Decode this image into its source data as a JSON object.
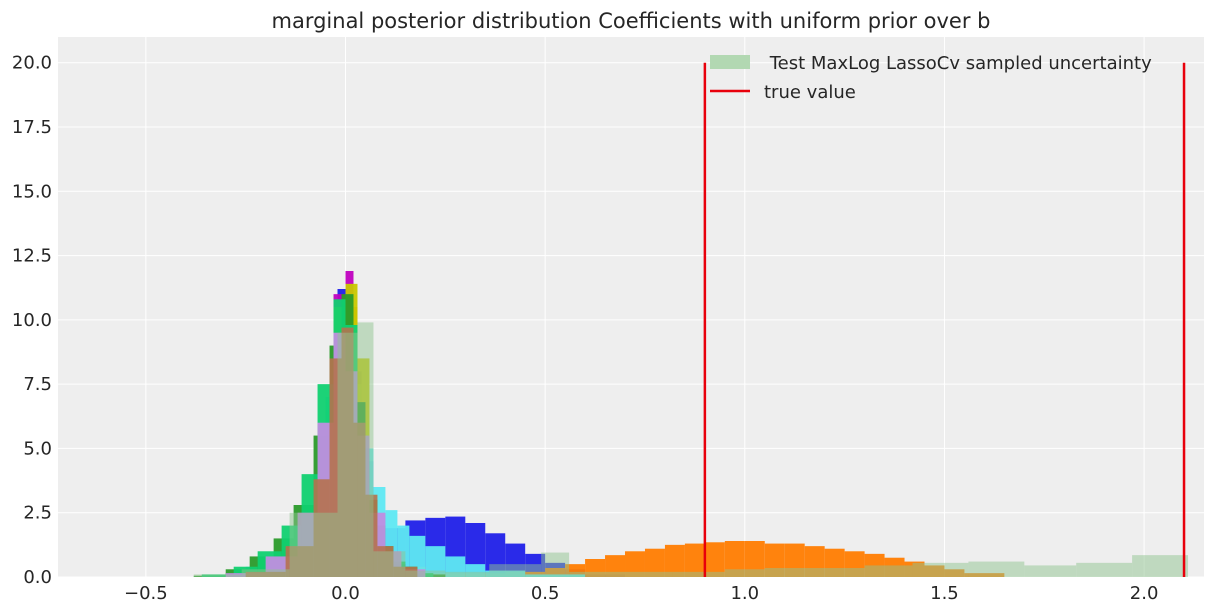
{
  "chart_data": {
    "type": "bar",
    "title": "marginal posterior distribution Coefficients with uniform prior over b",
    "xlabel": "",
    "ylabel": "",
    "xlim": [
      -0.72,
      2.15
    ],
    "ylim": [
      0,
      21
    ],
    "x_ticks": [
      -0.5,
      0.0,
      0.5,
      1.0,
      1.5,
      2.0
    ],
    "x_tick_labels": [
      "−0.5",
      "0.0",
      "0.5",
      "1.0",
      "1.5",
      "2.0"
    ],
    "y_ticks": [
      0,
      2.5,
      5,
      7.5,
      10,
      12.5,
      15,
      17.5,
      20
    ],
    "y_tick_labels": [
      "0.0",
      "2.5",
      "5.0",
      "7.5",
      "10.0",
      "12.5",
      "15.0",
      "17.5",
      "20.0"
    ],
    "grid": true,
    "legend_position": "top-right",
    "legend": [
      {
        "label": " Test MaxLog LassoCv sampled uncertainty",
        "kind": "patch",
        "color": "#b2d8b2"
      },
      {
        "label": "true value",
        "kind": "line",
        "color": "#e8000b"
      }
    ],
    "true_values": [
      0.9,
      2.1
    ],
    "true_value_height": 20,
    "true_value_color": "#e8000b",
    "series": [
      {
        "color": "#1f1fe8",
        "opacity": 0.95,
        "bins": [
          [
            -0.3,
            -0.2,
            0.1
          ],
          [
            -0.2,
            -0.1,
            0.6
          ],
          [
            -0.1,
            -0.05,
            2.5
          ],
          [
            -0.05,
            -0.02,
            6.5
          ],
          [
            -0.02,
            0.01,
            11.2
          ],
          [
            0.01,
            0.04,
            8.0
          ],
          [
            0.04,
            0.07,
            4.5
          ],
          [
            0.07,
            0.1,
            2.4
          ],
          [
            0.1,
            0.15,
            1.9
          ],
          [
            0.15,
            0.2,
            2.2
          ],
          [
            0.2,
            0.25,
            2.3
          ],
          [
            0.25,
            0.3,
            2.35
          ],
          [
            0.3,
            0.35,
            2.1
          ],
          [
            0.35,
            0.4,
            1.7
          ],
          [
            0.4,
            0.45,
            1.3
          ],
          [
            0.45,
            0.5,
            0.9
          ],
          [
            0.5,
            0.55,
            0.55
          ],
          [
            0.55,
            0.6,
            0.3
          ],
          [
            0.6,
            0.7,
            0.1
          ]
        ]
      },
      {
        "color": "#ff7c00",
        "opacity": 0.95,
        "bins": [
          [
            -0.3,
            -0.1,
            0.15
          ],
          [
            -0.1,
            -0.02,
            2.0
          ],
          [
            -0.02,
            0.03,
            10.5
          ],
          [
            0.03,
            0.08,
            3.0
          ],
          [
            0.08,
            0.2,
            0.4
          ],
          [
            0.2,
            0.4,
            0.15
          ],
          [
            0.4,
            0.5,
            0.2
          ],
          [
            0.5,
            0.55,
            0.35
          ],
          [
            0.55,
            0.6,
            0.5
          ],
          [
            0.6,
            0.65,
            0.7
          ],
          [
            0.65,
            0.7,
            0.85
          ],
          [
            0.7,
            0.75,
            1.0
          ],
          [
            0.75,
            0.8,
            1.1
          ],
          [
            0.8,
            0.85,
            1.25
          ],
          [
            0.85,
            0.9,
            1.3
          ],
          [
            0.9,
            0.95,
            1.35
          ],
          [
            0.95,
            1.0,
            1.4
          ],
          [
            1.0,
            1.05,
            1.4
          ],
          [
            1.05,
            1.1,
            1.3
          ],
          [
            1.1,
            1.15,
            1.3
          ],
          [
            1.15,
            1.2,
            1.2
          ],
          [
            1.2,
            1.25,
            1.1
          ],
          [
            1.25,
            1.3,
            1.0
          ],
          [
            1.3,
            1.35,
            0.9
          ],
          [
            1.35,
            1.4,
            0.75
          ],
          [
            1.4,
            1.45,
            0.6
          ],
          [
            1.45,
            1.5,
            0.45
          ],
          [
            1.5,
            1.55,
            0.3
          ],
          [
            1.55,
            1.65,
            0.15
          ]
        ]
      },
      {
        "color": "#5ee8f2",
        "opacity": 0.95,
        "bins": [
          [
            -0.25,
            -0.1,
            0.4
          ],
          [
            -0.1,
            -0.05,
            2.2
          ],
          [
            -0.05,
            -0.02,
            7.0
          ],
          [
            -0.02,
            0.01,
            10.8
          ],
          [
            0.01,
            0.04,
            7.5
          ],
          [
            0.04,
            0.07,
            5.0
          ],
          [
            0.07,
            0.1,
            3.5
          ],
          [
            0.1,
            0.13,
            2.6
          ],
          [
            0.13,
            0.16,
            2.0
          ],
          [
            0.16,
            0.2,
            1.6
          ],
          [
            0.2,
            0.25,
            1.2
          ],
          [
            0.25,
            0.3,
            0.8
          ],
          [
            0.3,
            0.35,
            0.5
          ],
          [
            0.35,
            0.45,
            0.25
          ],
          [
            0.45,
            0.6,
            0.1
          ]
        ]
      },
      {
        "color": "#bf00bf",
        "opacity": 0.95,
        "bins": [
          [
            -0.2,
            -0.08,
            0.5
          ],
          [
            -0.08,
            -0.03,
            4.0
          ],
          [
            -0.03,
            0.0,
            11.0
          ],
          [
            0.0,
            0.02,
            11.9
          ],
          [
            0.02,
            0.05,
            6.5
          ],
          [
            0.05,
            0.08,
            2.5
          ],
          [
            0.08,
            0.15,
            0.5
          ]
        ]
      },
      {
        "color": "#c8c800",
        "opacity": 0.95,
        "bins": [
          [
            -0.2,
            -0.08,
            0.5
          ],
          [
            -0.08,
            -0.03,
            3.5
          ],
          [
            -0.03,
            0.0,
            10.5
          ],
          [
            0.0,
            0.03,
            11.4
          ],
          [
            0.03,
            0.06,
            8.5
          ],
          [
            0.06,
            0.09,
            2.0
          ],
          [
            0.09,
            0.15,
            0.4
          ]
        ]
      },
      {
        "color": "#2a9a2a",
        "opacity": 0.95,
        "bins": [
          [
            -0.38,
            -0.3,
            0.05
          ],
          [
            -0.3,
            -0.24,
            0.3
          ],
          [
            -0.24,
            -0.18,
            0.8
          ],
          [
            -0.18,
            -0.13,
            1.5
          ],
          [
            -0.13,
            -0.08,
            2.8
          ],
          [
            -0.08,
            -0.04,
            5.5
          ],
          [
            -0.04,
            -0.01,
            9.0
          ],
          [
            -0.01,
            0.02,
            11.0
          ],
          [
            0.02,
            0.05,
            6.8
          ],
          [
            0.05,
            0.08,
            3.0
          ],
          [
            0.08,
            0.12,
            1.2
          ],
          [
            0.12,
            0.18,
            0.4
          ],
          [
            0.18,
            0.25,
            0.1
          ]
        ]
      },
      {
        "color": "#10d070",
        "opacity": 0.95,
        "bins": [
          [
            -0.36,
            -0.28,
            0.1
          ],
          [
            -0.28,
            -0.22,
            0.4
          ],
          [
            -0.22,
            -0.16,
            1.0
          ],
          [
            -0.16,
            -0.11,
            2.0
          ],
          [
            -0.11,
            -0.07,
            4.0
          ],
          [
            -0.07,
            -0.03,
            7.5
          ],
          [
            -0.03,
            0.0,
            10.8
          ],
          [
            0.0,
            0.03,
            9.8
          ],
          [
            0.03,
            0.06,
            5.0
          ],
          [
            0.06,
            0.1,
            2.0
          ],
          [
            0.1,
            0.15,
            0.6
          ],
          [
            0.15,
            0.22,
            0.15
          ]
        ]
      },
      {
        "color": "#c08ee0",
        "opacity": 0.95,
        "bins": [
          [
            -0.3,
            -0.2,
            0.15
          ],
          [
            -0.2,
            -0.12,
            0.8
          ],
          [
            -0.12,
            -0.07,
            2.5
          ],
          [
            -0.07,
            -0.03,
            6.0
          ],
          [
            -0.03,
            0.0,
            9.5
          ],
          [
            0.0,
            0.03,
            8.0
          ],
          [
            0.03,
            0.06,
            5.5
          ],
          [
            0.06,
            0.1,
            2.5
          ],
          [
            0.1,
            0.14,
            1.0
          ],
          [
            0.14,
            0.2,
            0.3
          ]
        ]
      },
      {
        "color": "#b5724f",
        "opacity": 0.9,
        "bins": [
          [
            -0.25,
            -0.15,
            0.2
          ],
          [
            -0.15,
            -0.08,
            1.2
          ],
          [
            -0.08,
            -0.04,
            3.8
          ],
          [
            -0.04,
            -0.01,
            8.5
          ],
          [
            -0.01,
            0.02,
            9.7
          ],
          [
            0.02,
            0.05,
            6.0
          ],
          [
            0.05,
            0.08,
            3.2
          ],
          [
            0.08,
            0.12,
            1.2
          ],
          [
            0.12,
            0.18,
            0.4
          ]
        ]
      },
      {
        "color": "#8fc48f",
        "opacity": 0.5,
        "bins": [
          [
            -0.38,
            -0.26,
            0.1
          ],
          [
            -0.26,
            -0.14,
            0.3
          ],
          [
            -0.14,
            -0.02,
            2.5
          ],
          [
            -0.02,
            0.03,
            9.5
          ],
          [
            0.03,
            0.07,
            9.9
          ],
          [
            0.07,
            0.15,
            1.0
          ],
          [
            0.15,
            0.25,
            0.25
          ],
          [
            0.25,
            0.36,
            0.2
          ],
          [
            0.36,
            0.49,
            0.5
          ],
          [
            0.49,
            0.56,
            0.95
          ],
          [
            0.56,
            0.82,
            0.2
          ],
          [
            0.82,
            0.95,
            0.2
          ],
          [
            0.95,
            1.05,
            0.3
          ],
          [
            1.05,
            1.3,
            0.35
          ],
          [
            1.3,
            1.42,
            0.45
          ],
          [
            1.42,
            1.56,
            0.55
          ],
          [
            1.56,
            1.7,
            0.6
          ],
          [
            1.7,
            1.83,
            0.45
          ],
          [
            1.83,
            1.97,
            0.55
          ],
          [
            1.97,
            2.11,
            0.85
          ]
        ]
      }
    ]
  }
}
